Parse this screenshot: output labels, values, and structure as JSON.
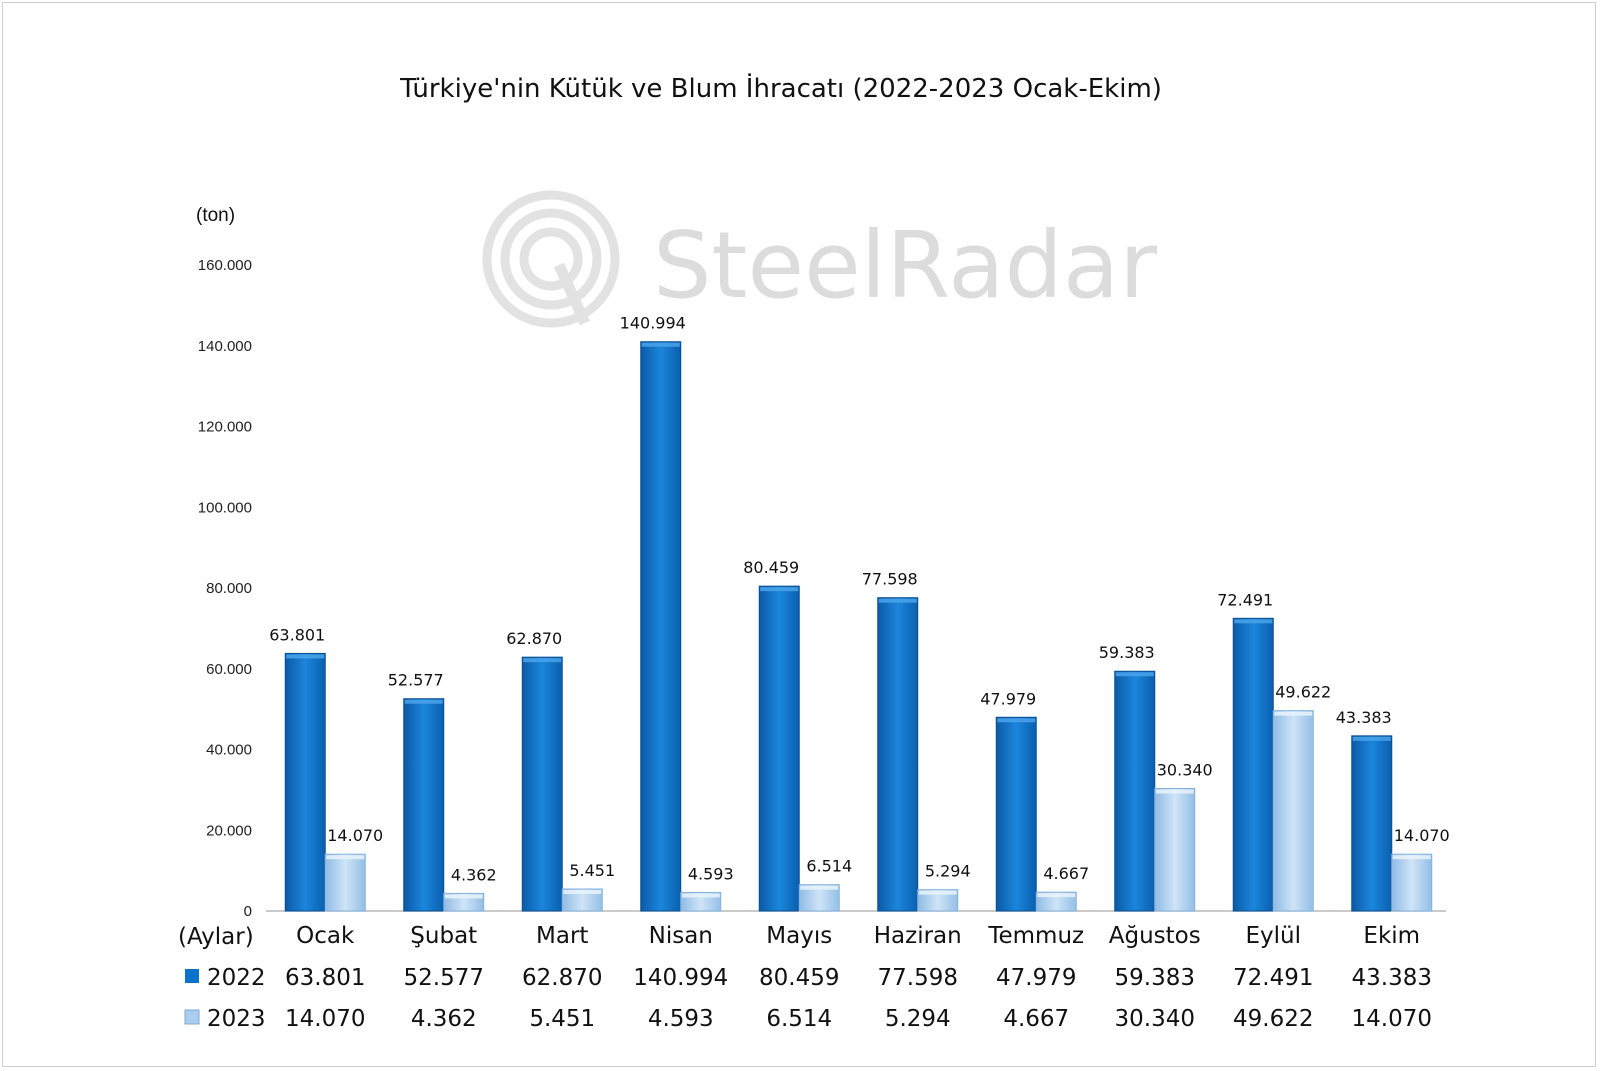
{
  "chart_data": {
    "type": "bar",
    "title": "Türkiye'nin Kütük ve Blum İhracatı (2022-2023 Ocak-Ekim)",
    "ylabel": "(ton)",
    "xlabel": "(Aylar)",
    "ylim": [
      0,
      160000
    ],
    "yticks": [
      0,
      20000,
      40000,
      60000,
      80000,
      100000,
      120000,
      140000,
      160000
    ],
    "ytick_labels": [
      "0",
      "20.000",
      "40.000",
      "60.000",
      "80.000",
      "100.000",
      "120.000",
      "140.000",
      "160.000"
    ],
    "categories": [
      "Ocak",
      "Şubat",
      "Mart",
      "Nisan",
      "Mayıs",
      "Haziran",
      "Temmuz",
      "Ağustos",
      "Eylül",
      "Ekim"
    ],
    "series": [
      {
        "name": "2022",
        "color": "#0a72c8",
        "values": [
          63801,
          52577,
          62870,
          140994,
          80459,
          77598,
          47979,
          59383,
          72491,
          43383
        ],
        "labels": [
          "63.801",
          "52.577",
          "62.870",
          "140.994",
          "80.459",
          "77.598",
          "47.979",
          "59.383",
          "72.491",
          "43.383"
        ]
      },
      {
        "name": "2023",
        "color": "#a9cdee",
        "values": [
          14070,
          4362,
          5451,
          4593,
          6514,
          5294,
          4667,
          30340,
          49622,
          14070
        ],
        "labels": [
          "14.070",
          "4.362",
          "5.451",
          "4.593",
          "6.514",
          "5.294",
          "4.667",
          "30.340",
          "49.622",
          "14.070"
        ]
      }
    ],
    "grid": false,
    "legend": "data-table"
  },
  "watermark": {
    "text": "SteelRadar"
  }
}
